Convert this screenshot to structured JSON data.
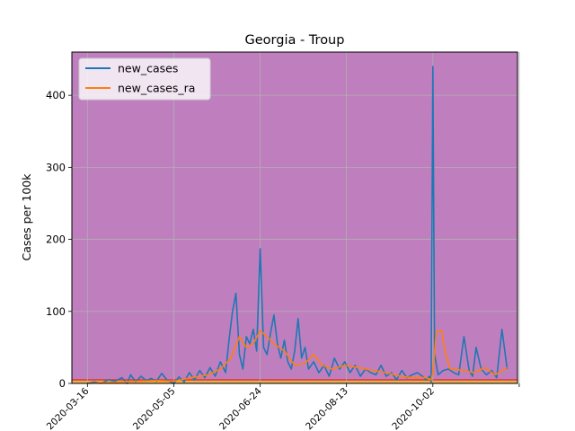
{
  "chart_data": {
    "type": "line",
    "title": "Georgia - Troup",
    "xlabel": "",
    "ylabel": "Cases per 100k",
    "ylim": [
      0,
      460
    ],
    "xlim": [
      "2020-03-07",
      "2020-11-20"
    ],
    "x_ticks": [
      "2020-03-16",
      "2020-05-05",
      "2020-06-24",
      "2020-08-13",
      "2020-10-02",
      ""
    ],
    "y_ticks": [
      "0",
      "100",
      "200",
      "300",
      "400"
    ],
    "grid": true,
    "legend_position": "upper-left",
    "background_color": "#bf7fbf",
    "threshold_bands": [
      {
        "color": "#e8b04a",
        "from": 0,
        "to": 4
      },
      {
        "color": "#e03a3a",
        "from": 4,
        "to": 6
      }
    ],
    "series": [
      {
        "name": "new_cases",
        "color": "#1f77b4",
        "x": [
          "2020-03-16",
          "2020-03-20",
          "2020-03-24",
          "2020-03-28",
          "2020-04-01",
          "2020-04-05",
          "2020-04-08",
          "2020-04-10",
          "2020-04-13",
          "2020-04-16",
          "2020-04-19",
          "2020-04-22",
          "2020-04-25",
          "2020-04-28",
          "2020-05-01",
          "2020-05-05",
          "2020-05-08",
          "2020-05-11",
          "2020-05-14",
          "2020-05-17",
          "2020-05-20",
          "2020-05-23",
          "2020-05-26",
          "2020-05-29",
          "2020-06-01",
          "2020-06-04",
          "2020-06-06",
          "2020-06-08",
          "2020-06-10",
          "2020-06-12",
          "2020-06-14",
          "2020-06-16",
          "2020-06-18",
          "2020-06-20",
          "2020-06-22",
          "2020-06-24",
          "2020-06-26",
          "2020-06-28",
          "2020-06-30",
          "2020-07-02",
          "2020-07-04",
          "2020-07-06",
          "2020-07-08",
          "2020-07-10",
          "2020-07-12",
          "2020-07-14",
          "2020-07-16",
          "2020-07-18",
          "2020-07-20",
          "2020-07-22",
          "2020-07-25",
          "2020-07-28",
          "2020-07-31",
          "2020-08-03",
          "2020-08-06",
          "2020-08-09",
          "2020-08-12",
          "2020-08-15",
          "2020-08-18",
          "2020-08-21",
          "2020-08-24",
          "2020-08-27",
          "2020-08-30",
          "2020-09-02",
          "2020-09-05",
          "2020-09-08",
          "2020-09-11",
          "2020-09-14",
          "2020-09-17",
          "2020-09-20",
          "2020-09-23",
          "2020-09-26",
          "2020-09-28",
          "2020-09-30",
          "2020-10-01",
          "2020-10-02",
          "2020-10-03",
          "2020-10-05",
          "2020-10-08",
          "2020-10-11",
          "2020-10-14",
          "2020-10-17",
          "2020-10-20",
          "2020-10-23",
          "2020-10-25",
          "2020-10-27",
          "2020-10-30",
          "2020-11-02",
          "2020-11-05",
          "2020-11-08",
          "2020-11-11",
          "2020-11-14"
        ],
        "y": [
          0,
          2,
          0,
          5,
          3,
          8,
          0,
          12,
          2,
          10,
          4,
          7,
          3,
          14,
          5,
          0,
          9,
          2,
          15,
          5,
          18,
          8,
          22,
          10,
          30,
          15,
          60,
          100,
          125,
          40,
          20,
          65,
          55,
          75,
          45,
          187,
          50,
          40,
          70,
          95,
          55,
          35,
          60,
          30,
          20,
          45,
          90,
          35,
          50,
          20,
          30,
          15,
          25,
          10,
          35,
          20,
          30,
          15,
          25,
          10,
          20,
          15,
          12,
          25,
          10,
          15,
          5,
          18,
          8,
          12,
          15,
          10,
          5,
          10,
          2,
          440,
          40,
          12,
          18,
          20,
          15,
          12,
          65,
          18,
          10,
          50,
          20,
          12,
          18,
          8,
          75,
          20
        ]
      },
      {
        "name": "new_cases_ra",
        "color": "#ff7f0e",
        "x": [
          "2020-03-16",
          "2020-03-26",
          "2020-04-05",
          "2020-04-15",
          "2020-04-25",
          "2020-05-05",
          "2020-05-15",
          "2020-05-25",
          "2020-06-01",
          "2020-06-07",
          "2020-06-12",
          "2020-06-16",
          "2020-06-20",
          "2020-06-24",
          "2020-06-28",
          "2020-07-02",
          "2020-07-08",
          "2020-07-14",
          "2020-07-20",
          "2020-07-25",
          "2020-07-30",
          "2020-08-05",
          "2020-08-12",
          "2020-08-20",
          "2020-08-28",
          "2020-09-05",
          "2020-09-13",
          "2020-09-20",
          "2020-09-28",
          "2020-10-01",
          "2020-10-02",
          "2020-10-04",
          "2020-10-07",
          "2020-10-09",
          "2020-10-12",
          "2020-10-20",
          "2020-10-26",
          "2020-11-01",
          "2020-11-07",
          "2020-11-14"
        ],
        "y": [
          0,
          1,
          2,
          3,
          4,
          3,
          8,
          12,
          20,
          35,
          65,
          50,
          55,
          73,
          65,
          55,
          45,
          25,
          28,
          40,
          25,
          20,
          25,
          22,
          18,
          15,
          10,
          8,
          8,
          5,
          15,
          72,
          74,
          45,
          20,
          18,
          15,
          22,
          12,
          22
        ]
      }
    ]
  }
}
